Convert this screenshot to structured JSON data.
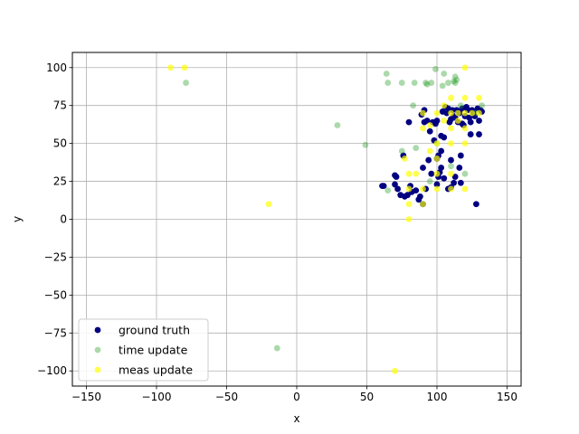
{
  "chart_data": {
    "type": "scatter",
    "xlabel": "x",
    "ylabel": "y",
    "xlim": [
      -160,
      160
    ],
    "ylim": [
      -110,
      110
    ],
    "xticks": [
      -150,
      -100,
      -50,
      0,
      50,
      100,
      150
    ],
    "yticks": [
      -100,
      -75,
      -50,
      -25,
      0,
      25,
      50,
      75,
      100
    ],
    "grid": true,
    "legend_position": "lower-left",
    "series": [
      {
        "name": "ground truth",
        "color": "#000080",
        "alpha": 1.0,
        "points": [
          [
            61,
            22
          ],
          [
            62,
            22
          ],
          [
            70,
            23
          ],
          [
            70,
            29
          ],
          [
            71,
            28
          ],
          [
            72,
            20
          ],
          [
            74,
            16
          ],
          [
            77,
            15
          ],
          [
            76,
            42
          ],
          [
            79,
            16
          ],
          [
            80,
            64
          ],
          [
            81,
            22
          ],
          [
            82,
            18
          ],
          [
            85,
            19
          ],
          [
            87,
            13
          ],
          [
            88,
            15
          ],
          [
            89,
            69
          ],
          [
            90,
            34
          ],
          [
            90,
            10
          ],
          [
            91,
            64
          ],
          [
            91,
            72
          ],
          [
            93,
            65
          ],
          [
            94,
            39
          ],
          [
            95,
            58
          ],
          [
            97,
            64
          ],
          [
            98,
            52
          ],
          [
            99,
            63
          ],
          [
            100,
            65
          ],
          [
            100,
            23
          ],
          [
            101,
            28
          ],
          [
            101,
            42
          ],
          [
            102,
            31
          ],
          [
            103,
            55
          ],
          [
            103,
            34
          ],
          [
            104,
            71
          ],
          [
            105,
            54
          ],
          [
            105,
            27
          ],
          [
            106,
            74
          ],
          [
            107,
            70
          ],
          [
            108,
            20
          ],
          [
            109,
            64
          ],
          [
            110,
            21
          ],
          [
            110,
            39
          ],
          [
            110,
            66
          ],
          [
            111,
            72
          ],
          [
            112,
            24
          ],
          [
            113,
            67
          ],
          [
            114,
            72
          ],
          [
            115,
            64
          ],
          [
            116,
            34
          ],
          [
            116,
            70
          ],
          [
            117,
            42
          ],
          [
            118,
            63
          ],
          [
            118,
            73
          ],
          [
            119,
            62
          ],
          [
            120,
            68
          ],
          [
            121,
            74
          ],
          [
            122,
            72
          ],
          [
            123,
            67
          ],
          [
            124,
            56
          ],
          [
            125,
            72
          ],
          [
            126,
            70
          ],
          [
            127,
            68
          ],
          [
            128,
            10
          ],
          [
            129,
            73
          ],
          [
            130,
            56
          ],
          [
            130,
            65
          ],
          [
            131,
            72
          ],
          [
            132,
            71
          ],
          [
            108,
            73
          ],
          [
            112,
            68
          ],
          [
            124,
            64
          ],
          [
            100,
            40
          ],
          [
            103,
            45
          ],
          [
            113,
            28
          ],
          [
            117,
            24
          ],
          [
            96,
            30
          ],
          [
            92,
            20
          ]
        ]
      },
      {
        "name": "time update",
        "color": "#2ca02c",
        "alpha": 0.4,
        "points": [
          [
            -79,
            90
          ],
          [
            -14,
            -85
          ],
          [
            29,
            62
          ],
          [
            49,
            49
          ],
          [
            64,
            96
          ],
          [
            65,
            90
          ],
          [
            65,
            19
          ],
          [
            75,
            90
          ],
          [
            75,
            45
          ],
          [
            83,
            75
          ],
          [
            84,
            90
          ],
          [
            85,
            47
          ],
          [
            92,
            90
          ],
          [
            93,
            89
          ],
          [
            96,
            90
          ],
          [
            99,
            99
          ],
          [
            104,
            88
          ],
          [
            105,
            96
          ],
          [
            108,
            90
          ],
          [
            112,
            91
          ],
          [
            113,
            94
          ],
          [
            113,
            90
          ],
          [
            114,
            92
          ],
          [
            117,
            75
          ],
          [
            100,
            50
          ],
          [
            110,
            35
          ],
          [
            120,
            30
          ],
          [
            95,
            25
          ],
          [
            128,
            70
          ],
          [
            132,
            75
          ]
        ]
      },
      {
        "name": "meas update",
        "color": "#ffff00",
        "alpha": 0.7,
        "points": [
          [
            -90,
            100
          ],
          [
            -80,
            100
          ],
          [
            -20,
            10
          ],
          [
            70,
            -100
          ],
          [
            77,
            40
          ],
          [
            80,
            30
          ],
          [
            80,
            20
          ],
          [
            80,
            10
          ],
          [
            80,
            0
          ],
          [
            90,
            70
          ],
          [
            90,
            60
          ],
          [
            90,
            20
          ],
          [
            90,
            10
          ],
          [
            95,
            62
          ],
          [
            100,
            70
          ],
          [
            100,
            50
          ],
          [
            100,
            40
          ],
          [
            100,
            30
          ],
          [
            100,
            20
          ],
          [
            105,
            75
          ],
          [
            105,
            65
          ],
          [
            110,
            80
          ],
          [
            110,
            70
          ],
          [
            110,
            60
          ],
          [
            110,
            50
          ],
          [
            110,
            30
          ],
          [
            110,
            20
          ],
          [
            115,
            70
          ],
          [
            115,
            65
          ],
          [
            120,
            100
          ],
          [
            120,
            80
          ],
          [
            120,
            70
          ],
          [
            120,
            60
          ],
          [
            120,
            50
          ],
          [
            120,
            20
          ],
          [
            125,
            70
          ],
          [
            130,
            80
          ],
          [
            130,
            70
          ],
          [
            85,
            30
          ],
          [
            95,
            45
          ]
        ]
      }
    ]
  }
}
